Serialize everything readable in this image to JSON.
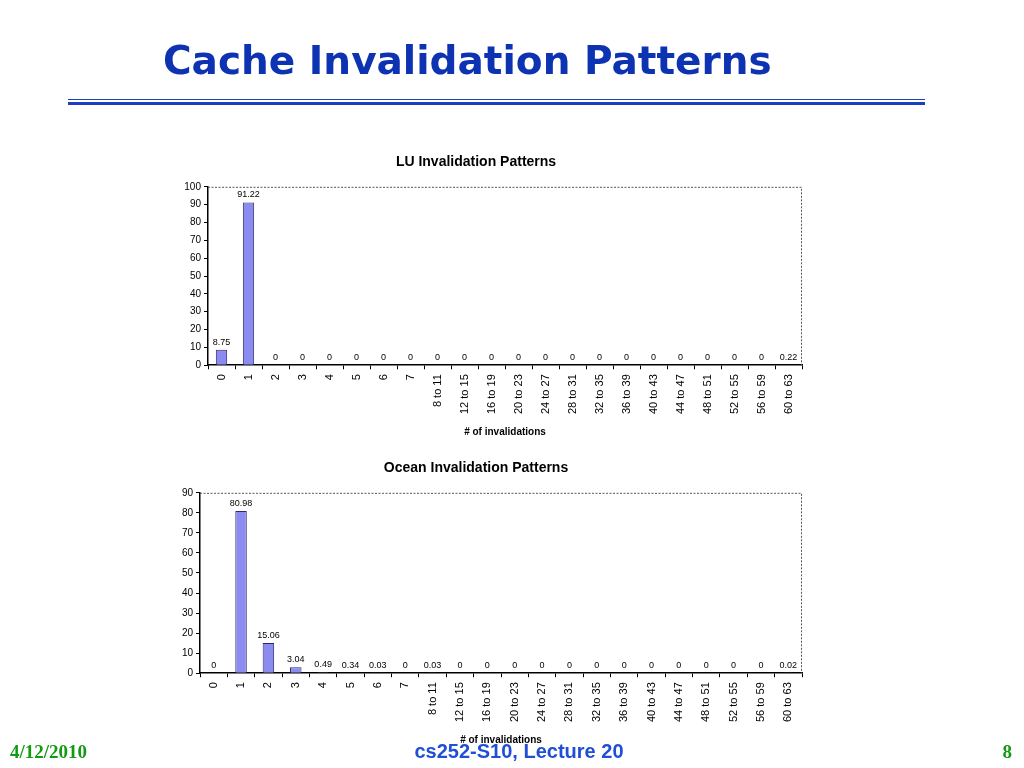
{
  "chart_data": [
    {
      "type": "other",
      "title": "Cache Invalidation Patterns",
      "annotations": [
        "4/12/2010",
        "cs252-S10, Lecture 20",
        "8"
      ]
    },
    {
      "type": "bar",
      "title": "LU Invalidation Patterns",
      "xlabel": "# of invalidations",
      "categories": [
        "0",
        "1",
        "2",
        "3",
        "4",
        "5",
        "6",
        "7",
        "8 to 11",
        "12 to 15",
        "16 to 19",
        "20 to 23",
        "24 to 27",
        "28 to 31",
        "32 to 35",
        "36 to 39",
        "40 to 43",
        "44 to 47",
        "48 to 51",
        "52 to 55",
        "56 to 59",
        "60 to 63"
      ],
      "values": [
        8.75,
        91.22,
        0,
        0,
        0,
        0,
        0,
        0,
        0,
        0,
        0,
        0,
        0,
        0,
        0,
        0,
        0,
        0,
        0,
        0,
        0,
        0.22
      ],
      "color": "#8c8cf0",
      "ylim": [
        0,
        100
      ],
      "yticks": [
        0,
        10,
        20,
        30,
        40,
        50,
        60,
        70,
        80,
        90,
        100
      ],
      "data_labels": true
    },
    {
      "type": "bar",
      "title": "Ocean Invalidation Patterns",
      "xlabel": "# of invalidations",
      "categories": [
        "0",
        "1",
        "2",
        "3",
        "4",
        "5",
        "6",
        "7",
        "8 to 11",
        "12 to 15",
        "16 to 19",
        "20 to 23",
        "24 to 27",
        "28 to 31",
        "32 to 35",
        "36 to 39",
        "40 to 43",
        "44 to 47",
        "48 to 51",
        "52 to 55",
        "56 to 59",
        "60 to 63"
      ],
      "values": [
        0,
        80.98,
        15.06,
        3.04,
        0.49,
        0.34,
        0.03,
        0,
        0.03,
        0,
        0,
        0,
        0,
        0,
        0,
        0,
        0,
        0,
        0,
        0,
        0,
        0.02
      ],
      "color": "#8c8cf0",
      "ylim": [
        0,
        90
      ],
      "yticks": [
        0,
        10,
        20,
        30,
        40,
        50,
        60,
        70,
        80,
        90
      ],
      "data_labels": true
    }
  ]
}
